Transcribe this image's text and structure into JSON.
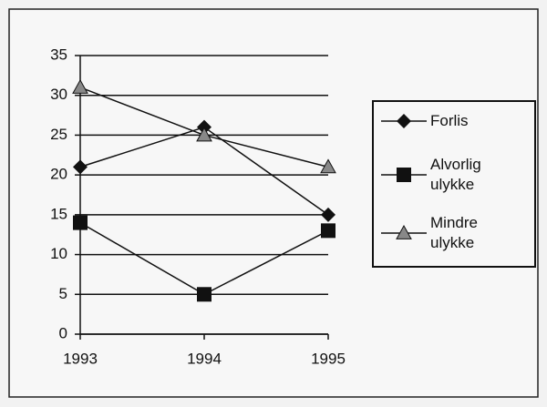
{
  "chart_data": {
    "type": "line",
    "categories": [
      "1993",
      "1994",
      "1995"
    ],
    "series": [
      {
        "name": "Forlis",
        "color": "#111111",
        "marker": "diamond",
        "values": [
          21,
          26,
          15
        ]
      },
      {
        "name": "Alvorlig ulykke",
        "color": "#111111",
        "marker": "square",
        "values": [
          14,
          5,
          13
        ]
      },
      {
        "name": "Mindre ulykke",
        "color": "#111111",
        "marker": "triangle",
        "values": [
          31,
          25,
          21
        ]
      }
    ],
    "ylim": [
      0,
      35
    ],
    "yticks": [
      0,
      5,
      10,
      15,
      20,
      25,
      30,
      35
    ],
    "grid": true,
    "legend": "right"
  }
}
